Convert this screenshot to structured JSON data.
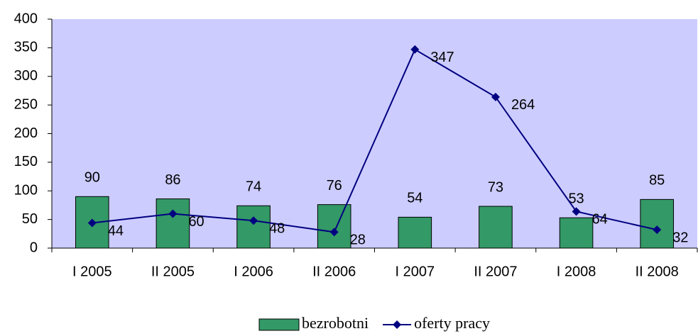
{
  "chart_data": {
    "type": "bar",
    "categories": [
      "I 2005",
      "II 2005",
      "I 2006",
      "II 2006",
      "I 2007",
      "II 2007",
      "I 2008",
      "II 2008"
    ],
    "series": [
      {
        "name": "bezrobotni",
        "type": "bar",
        "color": "#339966",
        "values": [
          90,
          86,
          74,
          76,
          54,
          73,
          53,
          85
        ]
      },
      {
        "name": "oferty pracy",
        "type": "line",
        "color": "#000080",
        "values": [
          44,
          60,
          48,
          28,
          347,
          264,
          64,
          32
        ]
      }
    ],
    "ylim": [
      0,
      400
    ],
    "yticks": [
      0,
      50,
      100,
      150,
      200,
      250,
      300,
      350,
      400
    ],
    "plot_background": "#ccccff",
    "grid": false,
    "legend": "bottom"
  }
}
